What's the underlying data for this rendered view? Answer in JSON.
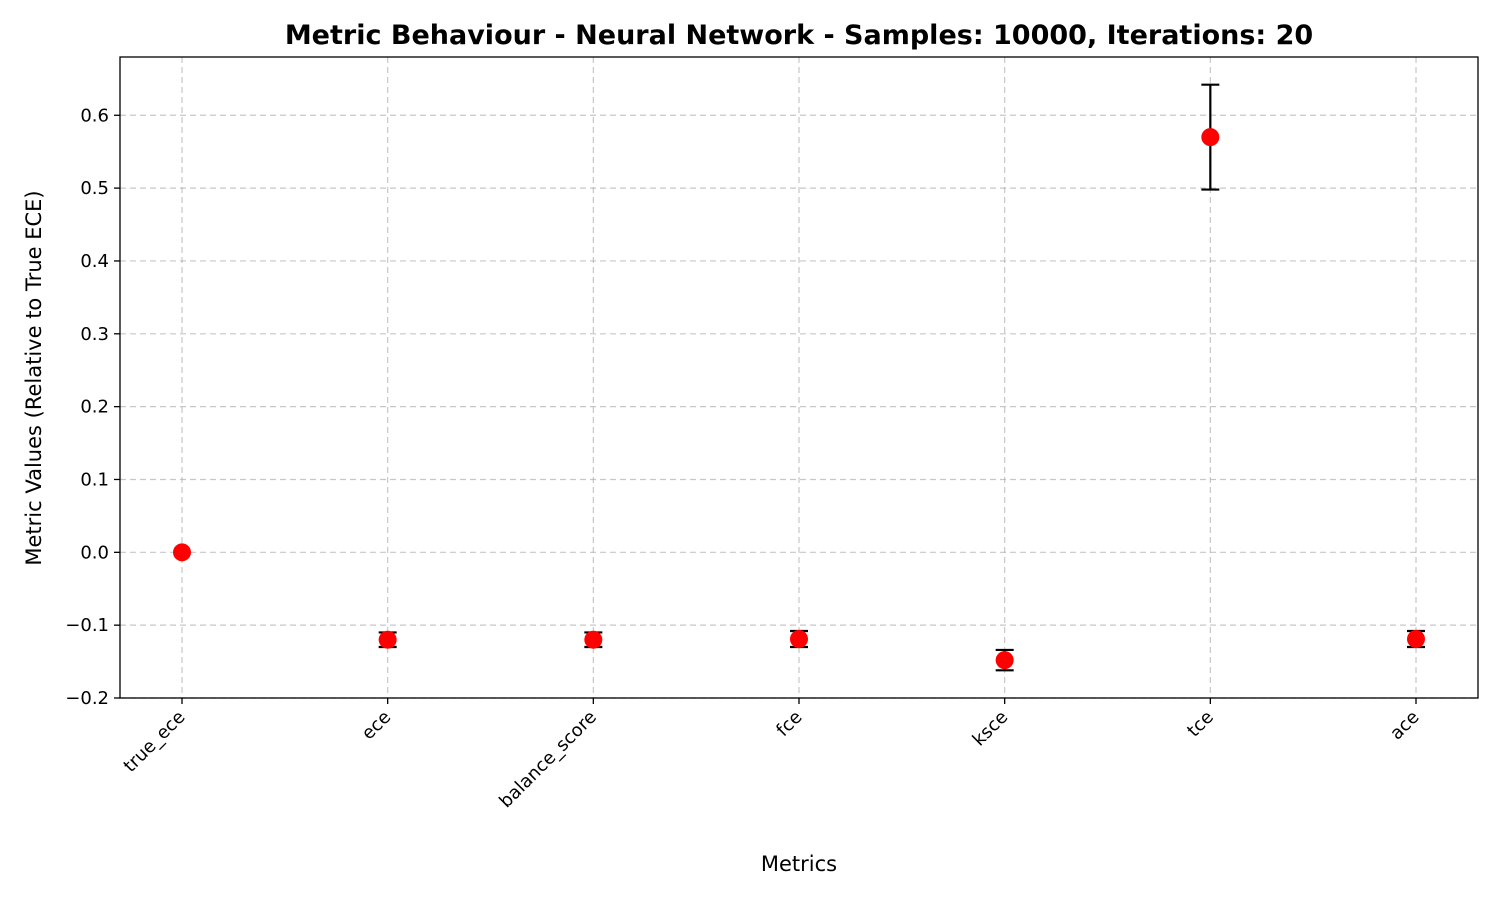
{
  "chart_data": {
    "type": "scatter",
    "title": "Metric Behaviour - Neural Network - Samples: 10000, Iterations: 20",
    "xlabel": "Metrics",
    "ylabel": "Metric Values (Relative to True ECE)",
    "categories": [
      "true_ece",
      "ece",
      "balance_score",
      "fce",
      "ksce",
      "tce",
      "ace"
    ],
    "values": [
      0.0,
      -0.12,
      -0.12,
      -0.119,
      -0.148,
      0.57,
      -0.119
    ],
    "errors": [
      0.0,
      0.01,
      0.01,
      0.011,
      0.014,
      0.072,
      0.011
    ],
    "ylim": [
      -0.2,
      0.68
    ],
    "yticks": [
      -0.2,
      -0.1,
      0.0,
      0.1,
      0.2,
      0.3,
      0.4,
      0.5,
      0.6
    ],
    "ytick_labels": [
      "−0.2",
      "−0.1",
      "0.0",
      "0.1",
      "0.2",
      "0.3",
      "0.4",
      "0.5",
      "0.6"
    ],
    "grid": true,
    "marker_color": "#ff0000",
    "errorbar_color": "#000000"
  }
}
